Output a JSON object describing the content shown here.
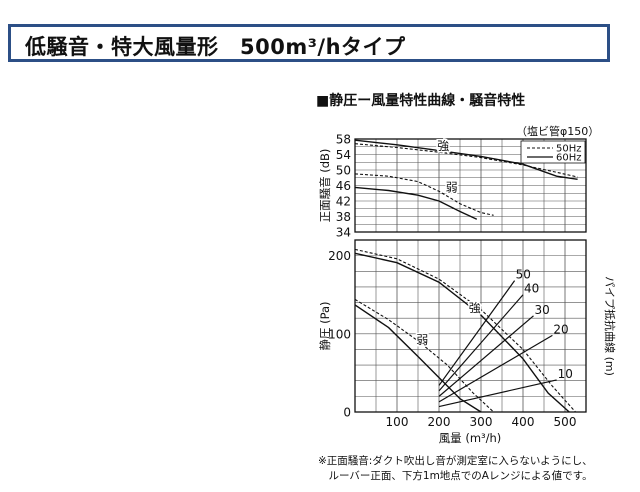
{
  "page": {
    "title": "低騒音・特大風量形　500m³/hタイプ",
    "chart_heading": "■静圧ー風量特性曲線・騒音特性",
    "pipe_note": "（塩ビ管φ150）",
    "footnote_lines": [
      "※正面騒音:ダクト吹出し音が測定室に入らないようにし、",
      "　ルーバー正面、下方1m地点でのAレンジによる値です。"
    ]
  },
  "chart_data": [
    {
      "type": "line",
      "ylabel": "正面騒音 (dB)",
      "ylim": [
        34,
        58
      ],
      "yticks": [
        34,
        38,
        42,
        46,
        50,
        54,
        58
      ],
      "xlim": [
        0,
        550
      ],
      "legend": {
        "placement": "top-right",
        "entries": [
          {
            "label": "50Hz",
            "style": "dashed"
          },
          {
            "label": "60Hz",
            "style": "solid"
          }
        ]
      },
      "curve_labels": [
        {
          "text": "強",
          "x": 210,
          "y": 55.2
        },
        {
          "text": "弱",
          "x": 230,
          "y": 44.5
        }
      ],
      "series": [
        {
          "style": "solid",
          "x": [
            0,
            100,
            200,
            300,
            400,
            480,
            530
          ],
          "y": [
            57.7,
            56.5,
            55.0,
            53.5,
            51.5,
            48.4,
            47.6
          ]
        },
        {
          "style": "dashed",
          "x": [
            0,
            100,
            200,
            300,
            400,
            480,
            530
          ],
          "y": [
            56.8,
            55.8,
            54.6,
            53.2,
            51.3,
            49.4,
            48.2
          ]
        },
        {
          "style": "solid",
          "x": [
            0,
            80,
            150,
            200,
            250,
            290
          ],
          "y": [
            45.5,
            44.7,
            43.5,
            42.0,
            39.3,
            37.3
          ]
        },
        {
          "style": "dashed",
          "x": [
            0,
            80,
            150,
            200,
            250,
            300,
            330
          ],
          "y": [
            49.0,
            48.4,
            47.0,
            44.5,
            41.3,
            39.0,
            38.3
          ]
        }
      ]
    },
    {
      "type": "line",
      "xlabel": "風量 (m³/h)",
      "ylabel": "静圧 (Pa)",
      "right_label": "パイプ抵抗曲線 (m)",
      "xlim": [
        0,
        550
      ],
      "ylim": [
        0,
        220
      ],
      "xticks": [
        100,
        200,
        300,
        400,
        500
      ],
      "yticks": [
        0,
        100,
        200
      ],
      "curve_labels": [
        {
          "text": "強",
          "x": 285,
          "y": 128
        },
        {
          "text": "弱",
          "x": 160,
          "y": 87
        }
      ],
      "series": [
        {
          "style": "solid",
          "x": [
            0,
            100,
            200,
            300,
            400,
            460,
            510
          ],
          "y": [
            203,
            191,
            166,
            124,
            68,
            24,
            0
          ]
        },
        {
          "style": "dashed",
          "x": [
            0,
            100,
            200,
            300,
            400,
            470,
            525
          ],
          "y": [
            208,
            196,
            170,
            131,
            80,
            33,
            0
          ]
        },
        {
          "style": "solid",
          "x": [
            0,
            80,
            150,
            200,
            250,
            300
          ],
          "y": [
            137,
            108,
            71,
            44,
            17,
            0
          ]
        },
        {
          "style": "dashed",
          "x": [
            0,
            80,
            150,
            220,
            280,
            330
          ],
          "y": [
            144,
            118,
            91,
            60,
            25,
            0
          ]
        }
      ],
      "pipe_resistance": [
        {
          "label": "50",
          "x": [
            200,
            380
          ],
          "y": [
            34,
            168
          ]
        },
        {
          "label": "40",
          "x": [
            200,
            400
          ],
          "y": [
            27,
            150
          ]
        },
        {
          "label": "30",
          "x": [
            200,
            425
          ],
          "y": [
            20,
            123
          ]
        },
        {
          "label": "20",
          "x": [
            200,
            470
          ],
          "y": [
            13,
            98
          ]
        },
        {
          "label": "10",
          "x": [
            200,
            480
          ],
          "y": [
            7,
            41
          ]
        }
      ]
    }
  ]
}
